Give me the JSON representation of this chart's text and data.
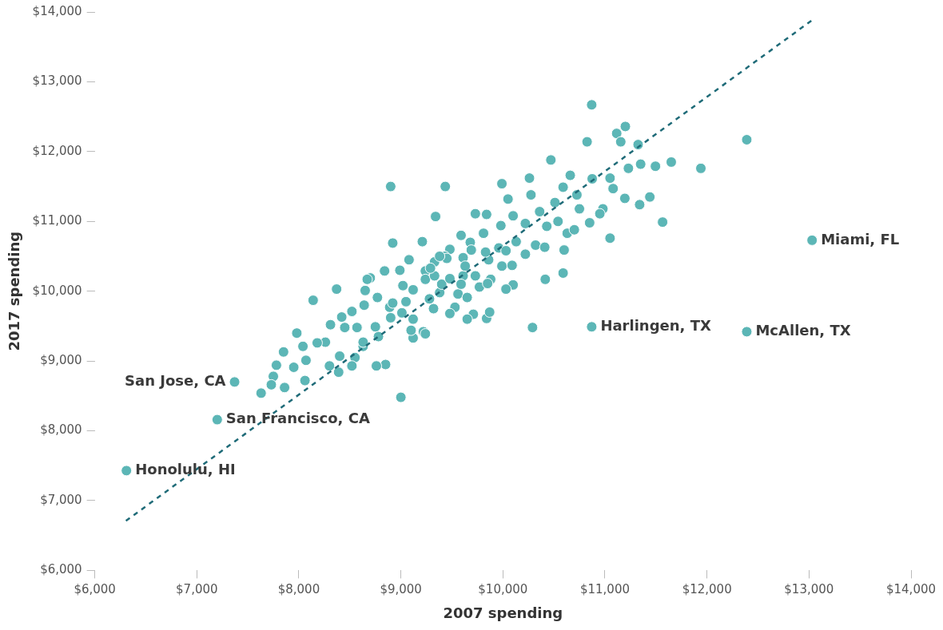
{
  "chart_data": {
    "type": "scatter",
    "xlabel": "2007 spending",
    "ylabel": "2017 spending",
    "xlim": [
      6000,
      14000
    ],
    "ylim": [
      6000,
      14000
    ],
    "xticks": [
      {
        "value": 6000,
        "label": "$6,000"
      },
      {
        "value": 7000,
        "label": "$7,000"
      },
      {
        "value": 8000,
        "label": "$8,000"
      },
      {
        "value": 9000,
        "label": "$9,000"
      },
      {
        "value": 10000,
        "label": "$10,000"
      },
      {
        "value": 11000,
        "label": "$11,000"
      },
      {
        "value": 12000,
        "label": "$12,000"
      },
      {
        "value": 13000,
        "label": "$13,000"
      },
      {
        "value": 14000,
        "label": "$14,000"
      }
    ],
    "yticks": [
      {
        "value": 6000,
        "label": "$6,000"
      },
      {
        "value": 7000,
        "label": "$7,000"
      },
      {
        "value": 8000,
        "label": "$8,000"
      },
      {
        "value": 9000,
        "label": "$9,000"
      },
      {
        "value": 10000,
        "label": "$10,000"
      },
      {
        "value": 11000,
        "label": "$11,000"
      },
      {
        "value": 12000,
        "label": "$12,000"
      },
      {
        "value": 13000,
        "label": "$13,000"
      },
      {
        "value": 14000,
        "label": "$14,000"
      }
    ],
    "grid": false,
    "legend": false,
    "marker": "circle",
    "series": [
      {
        "color": "#5cb6b6",
        "x": [
          6310,
          7200,
          7370,
          10870,
          12390,
          13030,
          12390,
          11940,
          11650,
          10870,
          11200,
          11115,
          10825,
          11155,
          11325,
          11495,
          11350,
          11440,
          11565,
          11050,
          10875,
          10660,
          10590,
          10510,
          10725,
          10980,
          11050,
          11340,
          11195,
          10590,
          10415,
          10290,
          9435,
          9340,
          8900,
          9000,
          9990,
          10260,
          10275,
          10470,
          10360,
          10050,
          9840,
          9730,
          9590,
          9480,
          9430,
          9330,
          9210,
          8920,
          8700,
          9080,
          9610,
          9680,
          9810,
          9980,
          10100,
          10220,
          10430,
          10540,
          10630,
          10750,
          10850,
          10130,
          9960,
          9860,
          9990,
          10090,
          9880,
          10100,
          9770,
          9730,
          9450,
          9610,
          9560,
          9380,
          9530,
          9710,
          9840,
          9870,
          9320,
          9120,
          9220,
          9120,
          9010,
          8890,
          8770,
          8640,
          8520,
          8420,
          8310,
          8450,
          8570,
          8780,
          8630,
          8850,
          8760,
          8550,
          8400,
          8390,
          8300,
          8520,
          8630,
          8260,
          8180,
          8040,
          8070,
          8060,
          7980,
          7850,
          7780,
          7750,
          7730,
          7630,
          7860,
          7950,
          8140,
          8370,
          8670,
          8840,
          8650,
          9020,
          8990,
          9120,
          9240,
          9240,
          9280,
          9050,
          8920,
          8900,
          9100,
          9240,
          9650,
          10030,
          10320,
          10220,
          9330,
          9400,
          9480,
          9590,
          9690,
          9830,
          10030,
          10410,
          10600,
          10700,
          10950,
          11080,
          11230,
          9380,
          9630,
          9850,
          9480,
          9650,
          8750,
          9290
        ],
        "values": [
          7430,
          8160,
          8700,
          9490,
          9420,
          10730,
          12170,
          11760,
          11850,
          12670,
          12360,
          12260,
          12140,
          12140,
          12100,
          11790,
          11820,
          11350,
          10990,
          11620,
          11610,
          11660,
          11490,
          11270,
          11380,
          11180,
          10760,
          11240,
          11330,
          10260,
          10170,
          9480,
          11500,
          11070,
          11500,
          8480,
          11540,
          11620,
          11380,
          11880,
          11140,
          11320,
          11100,
          11110,
          10800,
          10600,
          10500,
          10420,
          10710,
          10690,
          10190,
          10450,
          10480,
          10700,
          10830,
          10940,
          11080,
          10970,
          10930,
          11000,
          10830,
          11180,
          10980,
          10710,
          10620,
          10450,
          10360,
          10370,
          10170,
          10090,
          10060,
          10220,
          10470,
          10220,
          9960,
          9980,
          9770,
          9670,
          9610,
          9700,
          9750,
          9600,
          9420,
          9330,
          9690,
          9770,
          9910,
          9800,
          9710,
          9630,
          9520,
          9480,
          9480,
          9350,
          9210,
          8950,
          8930,
          9050,
          9070,
          8840,
          8930,
          8930,
          9270,
          9270,
          9260,
          9210,
          9010,
          8720,
          9400,
          9130,
          8940,
          8780,
          8660,
          8540,
          8620,
          8910,
          9870,
          10030,
          10170,
          10290,
          10010,
          10080,
          10300,
          10020,
          10290,
          10170,
          9890,
          9850,
          9830,
          9620,
          9440,
          9390,
          9910,
          10030,
          10660,
          10530,
          10220,
          10100,
          10180,
          10100,
          10590,
          10560,
          10580,
          10630,
          10590,
          10880,
          11110,
          11470,
          11760,
          10500,
          10360,
          10110,
          9680,
          9600,
          9490,
          10330
        ]
      },
      {
        "type": "line",
        "color": "#1f6b78",
        "line_style": "dashed",
        "marker": "none",
        "x": [
          6305,
          13028
        ],
        "values": [
          6710,
          13880
        ]
      }
    ],
    "annotations": [
      {
        "text": "Honolulu, HI",
        "x": 6310,
        "y": 7430
      },
      {
        "text": "San Francisco, CA",
        "x": 7200,
        "y": 8160
      },
      {
        "text": "San Jose, CA",
        "x": 7370,
        "y": 8700
      },
      {
        "text": "Harlingen, TX",
        "x": 10870,
        "y": 9490
      },
      {
        "text": "McAllen, TX",
        "x": 12390,
        "y": 9420
      },
      {
        "text": "Miami, FL",
        "x": 13030,
        "y": 10730
      }
    ]
  }
}
